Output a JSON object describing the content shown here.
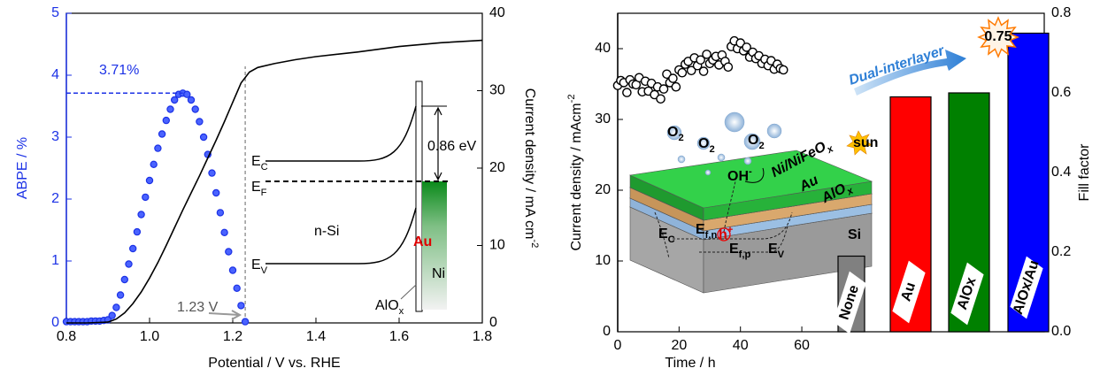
{
  "chart_data": [
    {
      "type": "line",
      "x_label": "Potential / V vs. RHE",
      "y_label": "ABPE / %",
      "y2_label": {
        "base": "Current density / mA cm",
        "sup": "-2"
      },
      "xlim": [
        0.8,
        1.8
      ],
      "xticks": [
        0.8,
        {
          "value": 1,
          "label": "1.0"
        },
        1.2,
        1.4,
        1.6,
        1.8
      ],
      "ylim": [
        0,
        5
      ],
      "yticks": [
        0,
        1,
        2,
        3,
        4,
        5
      ],
      "y2lim": [
        0,
        40
      ],
      "y2ticks": [
        0,
        10,
        20,
        30,
        40
      ],
      "series": [
        {
          "color": "#1c32e6",
          "marker": "circle",
          "x": [
            0.8,
            0.81,
            0.82,
            0.83,
            0.84,
            0.85,
            0.86,
            0.87,
            0.88,
            0.89,
            0.9,
            0.91,
            0.92,
            0.93,
            0.94,
            0.95,
            0.96,
            0.97,
            0.98,
            0.99,
            1.0,
            1.01,
            1.02,
            1.03,
            1.04,
            1.05,
            1.06,
            1.07,
            1.08,
            1.09,
            1.1,
            1.11,
            1.12,
            1.13,
            1.14,
            1.15,
            1.16,
            1.17,
            1.18,
            1.19,
            1.2,
            1.21,
            1.22,
            1.23
          ],
          "values": [
            0.02,
            0.02,
            0.02,
            0.02,
            0.02,
            0.02,
            0.03,
            0.03,
            0.03,
            0.04,
            0.05,
            0.12,
            0.25,
            0.45,
            0.7,
            0.95,
            1.2,
            1.47,
            1.75,
            2.03,
            2.3,
            2.56,
            2.82,
            3.05,
            3.27,
            3.45,
            3.6,
            3.69,
            3.71,
            3.69,
            3.6,
            3.45,
            3.25,
            3.0,
            2.72,
            2.42,
            2.1,
            1.78,
            1.46,
            1.15,
            0.85,
            0.56,
            0.28,
            0.02
          ]
        },
        {
          "color": "#000000",
          "axis": "y2",
          "x": [
            0.8,
            0.85,
            0.9,
            0.92,
            0.94,
            0.96,
            0.98,
            1.0,
            1.02,
            1.04,
            1.06,
            1.08,
            1.1,
            1.12,
            1.14,
            1.16,
            1.18,
            1.2,
            1.22,
            1.24,
            1.26,
            1.3,
            1.35,
            1.4,
            1.5,
            1.6,
            1.7,
            1.8
          ],
          "values": [
            0,
            0,
            0.1,
            0.5,
            1.3,
            2.5,
            4.0,
            5.8,
            7.8,
            10,
            12.3,
            14.6,
            16.8,
            19,
            21.3,
            23.6,
            26,
            28.5,
            31,
            32.4,
            33,
            33.5,
            34,
            34.4,
            35,
            35.7,
            36.2,
            36.5
          ]
        }
      ],
      "peak": {
        "value": 3.71,
        "x": 1.08,
        "label": "3.71%"
      },
      "vline": {
        "value": 1.23,
        "label": "1.23 V"
      },
      "inset": {
        "ec": {
          "base": "E",
          "sub": "C"
        },
        "ef": {
          "base": "E",
          "sub": "F"
        },
        "ev": {
          "base": "E",
          "sub": "V"
        },
        "gap": "0.86 eV",
        "semiconductor": "n-Si",
        "metal1": "Au",
        "metal2": "Ni",
        "oxide": {
          "base": "AlO",
          "sub": "x"
        }
      }
    },
    {
      "type": "combo",
      "x_label": "Time / h",
      "y_label": {
        "base": "Current density / mAcm",
        "sup": "-2"
      },
      "y2_label": "Fill factor",
      "xlim": [
        0,
        139
      ],
      "xticks": [
        0,
        20,
        40,
        60
      ],
      "ylim": [
        0,
        45
      ],
      "yticks": [
        0,
        10,
        20,
        30,
        40
      ],
      "y2lim": [
        0,
        0.8
      ],
      "y2ticks": [
        {
          "value": 0,
          "label": "0.0"
        },
        0.2,
        0.4,
        0.6,
        0.8
      ],
      "series": [
        {
          "color": "#000000",
          "marker": "open-circle",
          "x": [
            0,
            1,
            2,
            3,
            4,
            5,
            6,
            7,
            8,
            9,
            10,
            11,
            12,
            13,
            14,
            15,
            16,
            17,
            18,
            19,
            20,
            21,
            22,
            23,
            24,
            25,
            26,
            27,
            28,
            29,
            30,
            31,
            32,
            33,
            34,
            35,
            36,
            37,
            38,
            39,
            40,
            41,
            42,
            43,
            44,
            45,
            46,
            47,
            48,
            49,
            50,
            51,
            52,
            53,
            54
          ],
          "values": [
            34.8,
            35.5,
            35.2,
            33.8,
            35.6,
            35.0,
            34.9,
            35.9,
            33.9,
            35.4,
            34.0,
            35.1,
            33.5,
            34.6,
            32.9,
            34.3,
            36.4,
            35.2,
            35.8,
            34.6,
            37.0,
            36.6,
            37.8,
            38.2,
            36.9,
            38.7,
            37.6,
            38.4,
            36.8,
            39.2,
            37.9,
            38.4,
            38.9,
            37.7,
            39.1,
            38.2,
            37.4,
            40.3,
            41.1,
            40.0,
            40.8,
            39.7,
            40.2,
            38.8,
            39.5,
            38.6,
            39.0,
            37.9,
            38.5,
            37.6,
            38.3,
            37.1,
            37.8,
            37.2,
            37.0
          ]
        }
      ],
      "bars": {
        "axis": "y2",
        "categories": [
          "None",
          "Au",
          "AlOx",
          "AlOx/Au"
        ],
        "values": [
          0.19,
          0.59,
          0.6,
          0.75
        ],
        "colors": [
          "#808080",
          "#ff0000",
          "#008000",
          "#0000ff"
        ]
      },
      "arrow_label": "Dual-interlayer",
      "illustration": [
        {
          "base": "O",
          "sub": "2"
        },
        {
          "base": "O",
          "sub": "2"
        },
        {
          "base": "O",
          "sub": "2"
        },
        {
          "base": "OH",
          "sup": "-"
        },
        {
          "base": "Ni/NiFeO",
          "sub": "x"
        },
        {
          "base": "Au"
        },
        {
          "base": "AlO",
          "sub": "x"
        },
        {
          "base": "Si"
        },
        {
          "base": "E",
          "sub": "C"
        },
        {
          "base": "E",
          "sub": "f,n"
        },
        {
          "base": "E",
          "sub": "f,p"
        },
        {
          "base": "E",
          "sub": "V"
        },
        {
          "base": "h",
          "sup": "+"
        },
        {
          "base": "sun"
        }
      ]
    }
  ]
}
